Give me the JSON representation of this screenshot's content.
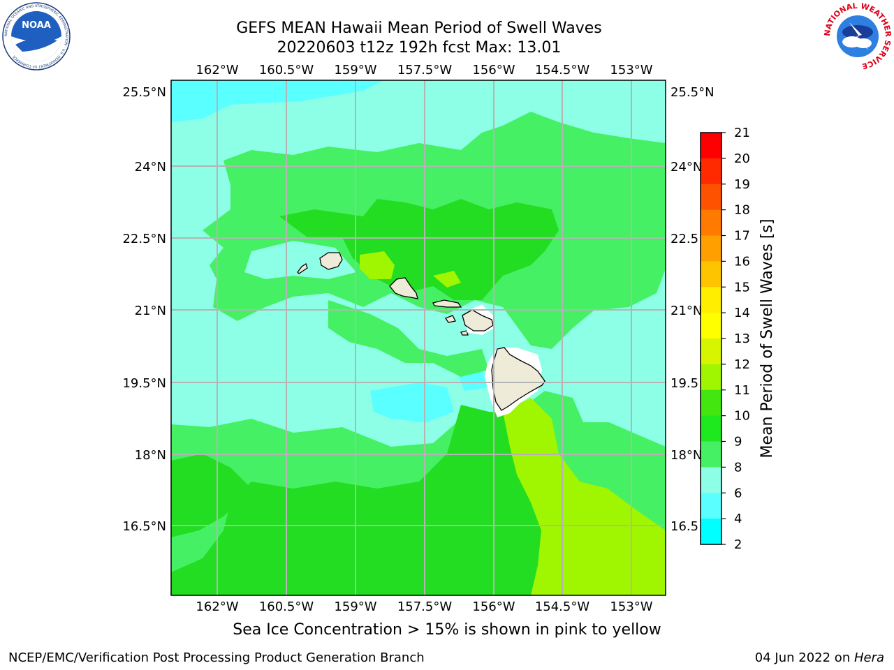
{
  "header": {
    "title_line1": "GEFS MEAN Hawaii Mean Period of Swell Waves",
    "title_line2": "20220603 t12z 192h fcst   Max: 13.01"
  },
  "logos": {
    "noaa_text": "NOAA",
    "noaa_ring_text": "NATIONAL OCEANIC AND ATMOSPHERIC ADMINISTRATION · U.S. DEPARTMENT OF COMMERCE",
    "nws_ring_text": "NATIONAL WEATHER SERVICE"
  },
  "map": {
    "lon_labels": [
      "162°W",
      "160.5°W",
      "159°W",
      "157.5°W",
      "156°W",
      "154.5°W",
      "153°W"
    ],
    "lat_labels_left": [
      "25.5°N",
      "24°N",
      "22.5°N",
      "21°N",
      "19.5°N",
      "18°N",
      "16.5°N"
    ],
    "lat_labels_right": [
      "25.5°N",
      "24°N",
      "22.5",
      "21°N",
      "19.5",
      "18°N",
      "16.5"
    ],
    "grid": true,
    "land_color": "#eeebd9",
    "coast_color": "#000000"
  },
  "colorbar": {
    "label": "Mean Period of Swell Waves [s]",
    "ticks": [
      "21",
      "20",
      "19",
      "18",
      "17",
      "16",
      "15",
      "14",
      "13",
      "12",
      "11",
      "10",
      "9",
      "8",
      "6",
      "4",
      "2"
    ],
    "colors": [
      "#ff0000",
      "#ff2a00",
      "#ff5200",
      "#ff7a00",
      "#ff9f00",
      "#ffc400",
      "#ffee00",
      "#ffff00",
      "#d8f500",
      "#a0f500",
      "#44e610",
      "#1ee81e",
      "#46f064",
      "#8cffe6",
      "#5affff",
      "#00ffff",
      "#0078ff",
      "#0000ff"
    ]
  },
  "subtitle": "Sea Ice Concentration > 15% is shown in pink to yellow",
  "footer": {
    "left": "NCEP/EMC/Verification Post Processing Product Generation Branch",
    "right_date": "04 Jun 2022 on ",
    "right_host": "Hera"
  }
}
